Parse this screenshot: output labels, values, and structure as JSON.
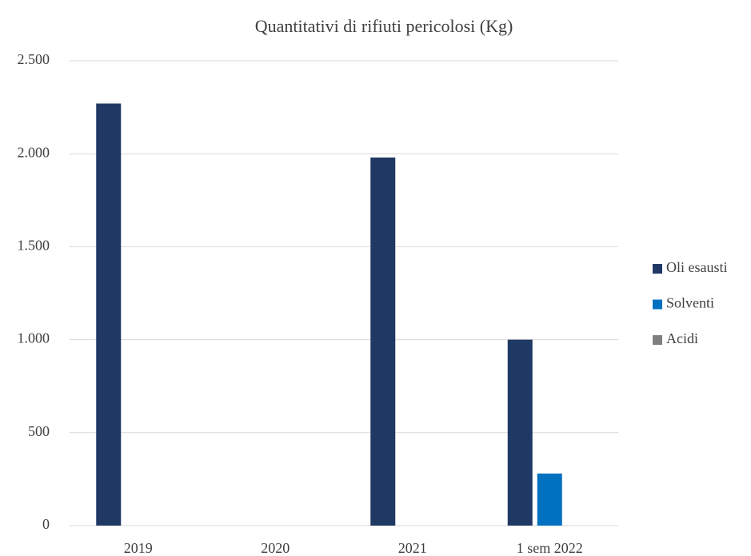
{
  "chart_data": {
    "type": "bar",
    "title": "Quantitativi di rifiuti pericolosi (Kg)",
    "categories": [
      "2019",
      "2020",
      "2021",
      "1 sem 2022"
    ],
    "series": [
      {
        "name": "Oli esausti",
        "color": "#203864",
        "values": [
          2270,
          0,
          1980,
          1000
        ]
      },
      {
        "name": "Solventi",
        "color": "#0070c0",
        "values": [
          0,
          0,
          0,
          280
        ]
      },
      {
        "name": "Acidi",
        "color": "#7f7f7f",
        "values": [
          0,
          0,
          0,
          0
        ]
      }
    ],
    "ylim": [
      0,
      2500
    ],
    "yticks": [
      0,
      500,
      {
        "value": 1000,
        "label": "1.000"
      },
      {
        "value": 1500,
        "label": "1.500"
      },
      {
        "value": 2000,
        "label": "2.000"
      },
      {
        "value": 2500,
        "label": "2.500"
      }
    ],
    "grid": true,
    "legend": "right"
  }
}
